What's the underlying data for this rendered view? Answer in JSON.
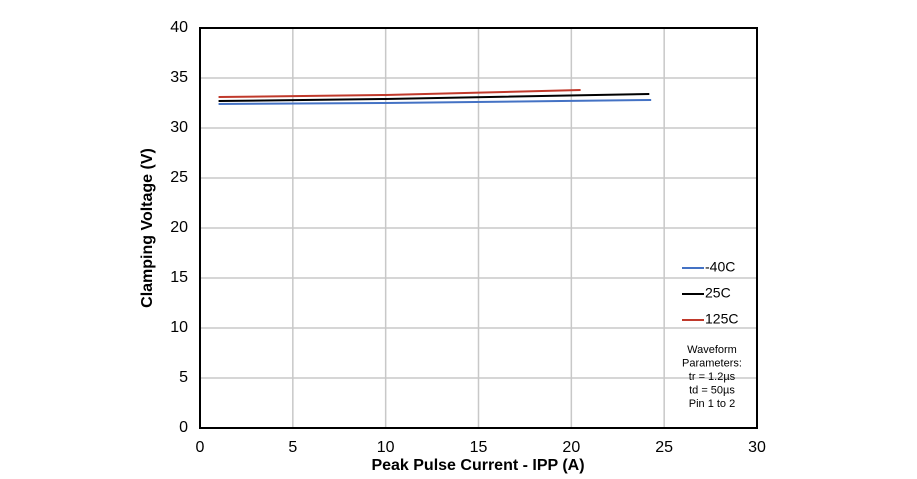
{
  "chart_data": {
    "type": "line",
    "x_label": "Peak Pulse Current - IPP (A)",
    "y_label": "Clamping Voltage (V)",
    "xlim": [
      0,
      30
    ],
    "xticks": [
      0,
      5,
      10,
      15,
      20,
      25,
      30
    ],
    "ylim": [
      0,
      40
    ],
    "yticks": [
      0,
      5,
      10,
      15,
      20,
      25,
      30,
      35,
      40
    ],
    "grid": true,
    "legend": "right",
    "series": [
      {
        "name": "-40C",
        "color": "#4472c4",
        "x": [
          1,
          10,
          24.3
        ],
        "values": [
          32.4,
          32.5,
          32.8
        ]
      },
      {
        "name": "25C",
        "color": "#000000",
        "x": [
          1,
          10,
          24.2
        ],
        "values": [
          32.7,
          32.9,
          33.4
        ]
      },
      {
        "name": "125C",
        "color": "#c0392b",
        "x": [
          1,
          10,
          20.5
        ],
        "values": [
          33.1,
          33.3,
          33.8
        ]
      }
    ],
    "annotation": [
      "Waveform",
      "Parameters:",
      "tr = 1.2µs",
      "td = 50µs",
      "Pin 1 to 2"
    ]
  }
}
